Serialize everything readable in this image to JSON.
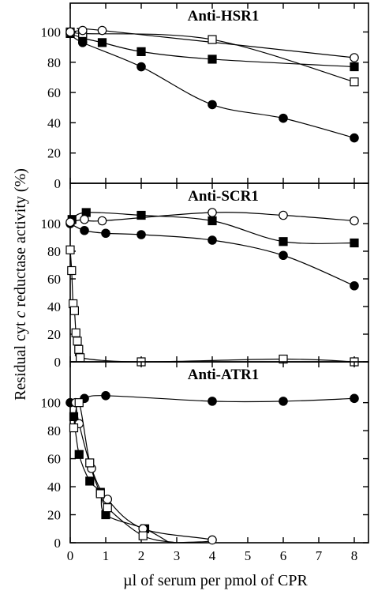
{
  "figure": {
    "ylabel_parts": [
      "Residual cyt ",
      "c",
      " reductase activity (%)"
    ],
    "xlabel": "µl of serum per pmol of CPR"
  },
  "chart_data": [
    {
      "type": "scatter",
      "title": "Anti-HSR1",
      "xlim": [
        0,
        8.4
      ],
      "ylim": [
        0,
        118
      ],
      "yticks": [
        "0",
        "20",
        "40",
        "60",
        "80",
        "100"
      ],
      "xticks": [],
      "series": [
        {
          "marker": "filled-circle",
          "x": [
            0,
            0.35,
            2,
            4,
            6,
            8
          ],
          "y": [
            99,
            93,
            77,
            52,
            43,
            30
          ]
        },
        {
          "marker": "filled-square",
          "x": [
            0,
            0.35,
            0.9,
            2,
            4,
            8
          ],
          "y": [
            99,
            96,
            93,
            87,
            82,
            77
          ]
        },
        {
          "marker": "open-square",
          "x": [
            0,
            0.35,
            4,
            8
          ],
          "y": [
            100,
            99,
            95,
            67
          ]
        },
        {
          "marker": "open-circle",
          "x": [
            0,
            0.35,
            0.9,
            8
          ],
          "y": [
            100,
            101,
            101,
            83
          ]
        }
      ]
    },
    {
      "type": "scatter",
      "title": "Anti-SCR1",
      "xlim": [
        0,
        8.4
      ],
      "ylim": [
        0,
        128
      ],
      "yticks": [
        "0",
        "20",
        "40",
        "60",
        "80",
        "100"
      ],
      "xticks": [],
      "series": [
        {
          "marker": "filled-circle",
          "x": [
            0,
            0.4,
            1,
            2,
            4,
            6,
            8
          ],
          "y": [
            100,
            95,
            93,
            92,
            88,
            77,
            55
          ]
        },
        {
          "marker": "filled-square",
          "x": [
            0.05,
            0.45,
            2,
            4,
            6,
            8
          ],
          "y": [
            103,
            108,
            106,
            102,
            87,
            86
          ]
        },
        {
          "marker": "open-circle",
          "x": [
            0,
            0.4,
            0.9,
            4,
            6,
            8
          ],
          "y": [
            101,
            103,
            102,
            108,
            106,
            102
          ]
        },
        {
          "marker": "open-square",
          "x": [
            0,
            0.04,
            0.08,
            0.12,
            0.16,
            0.2,
            0.24,
            0.28,
            2,
            6,
            8
          ],
          "y": [
            81,
            66,
            42,
            37,
            21,
            15,
            9,
            3,
            0,
            2,
            0
          ]
        }
      ]
    },
    {
      "type": "scatter",
      "title": "Anti-ATR1",
      "xlim": [
        0,
        8.4
      ],
      "ylim": [
        0,
        128
      ],
      "yticks": [
        "0",
        "20",
        "40",
        "60",
        "80",
        "100"
      ],
      "xticks": [
        "0",
        "1",
        "2",
        "3",
        "4",
        "5",
        "6",
        "7",
        "8"
      ],
      "series": [
        {
          "marker": "filled-circle",
          "x": [
            0,
            0.4,
            1,
            4,
            6,
            8
          ],
          "y": [
            100,
            103,
            105,
            101,
            101,
            103
          ]
        },
        {
          "marker": "filled-square",
          "x": [
            0.1,
            0.25,
            0.55,
            0.85,
            1.0,
            2.1
          ],
          "y": [
            90,
            63,
            44,
            36,
            20,
            10
          ]
        },
        {
          "marker": "open-circle",
          "x": [
            0.15,
            0.25,
            0.6,
            1.05,
            2.05,
            4
          ],
          "y": [
            100,
            85,
            53,
            31,
            10,
            2
          ]
        },
        {
          "marker": "open-square",
          "x": [
            0.1,
            0.25,
            0.55,
            0.85,
            1.05,
            2.05
          ],
          "y": [
            82,
            100,
            57,
            35,
            25,
            5
          ]
        }
      ]
    }
  ]
}
